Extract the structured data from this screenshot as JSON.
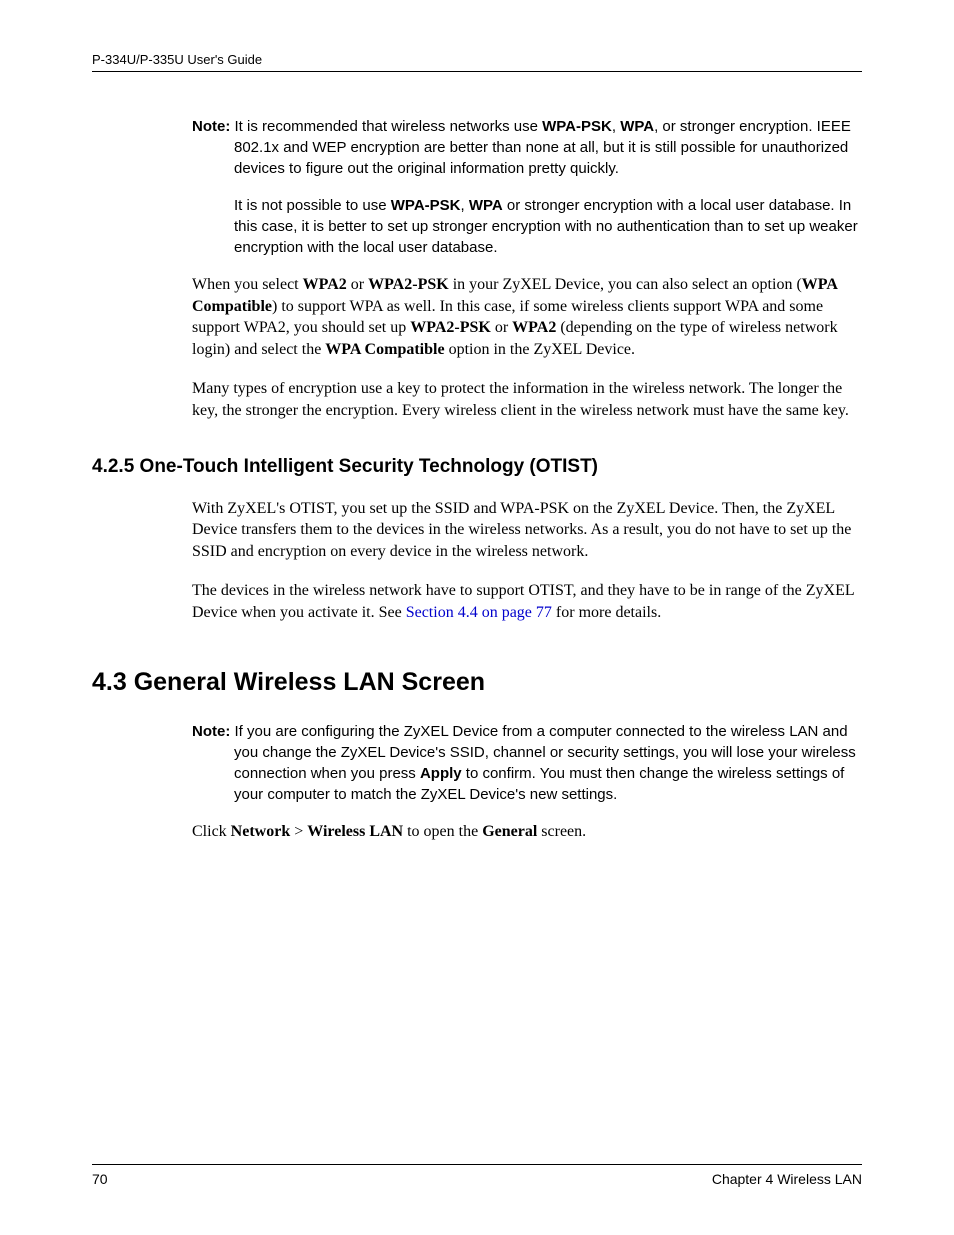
{
  "header": {
    "title": "P-334U/P-335U User's Guide"
  },
  "footer": {
    "page_number": "70",
    "chapter": "Chapter 4 Wireless LAN"
  },
  "note1": {
    "label": "Note:",
    "p1_a": " It is recommended that wireless networks use ",
    "p1_b": "WPA-PSK",
    "p1_c": ", ",
    "p1_d": "WPA",
    "p1_e": ", or stronger encryption. IEEE 802.1x and WEP encryption are better than none at all, but it is still possible for unauthorized devices to figure out the original information pretty quickly.",
    "p2_a": "It is not possible to use ",
    "p2_b": "WPA-PSK",
    "p2_c": ", ",
    "p2_d": "WPA",
    "p2_e": " or stronger encryption with a local user database. In this case, it is better to set up stronger encryption with no authentication than to set up weaker encryption with the local user database."
  },
  "body": {
    "p1_a": "When you select ",
    "p1_b": "WPA2",
    "p1_c": " or ",
    "p1_d": "WPA2-PSK",
    "p1_e": " in your ZyXEL Device, you can also select an option (",
    "p1_f": "WPA Compatible",
    "p1_g": ") to support WPA as well. In this case, if some wireless clients support WPA and some support WPA2, you should set up ",
    "p1_h": "WPA2-PSK",
    "p1_i": " or ",
    "p1_j": "WPA2",
    "p1_k": " (depending on the type of wireless network login) and select the ",
    "p1_l": "WPA Compatible",
    "p1_m": " option in the ZyXEL Device.",
    "p2": "Many types of encryption use a key to protect the information in the wireless network. The longer the key, the stronger the encryption. Every wireless client in the wireless network must have the same key."
  },
  "section425": {
    "heading": "4.2.5  One-Touch Intelligent Security Technology (OTIST)",
    "p1": "With ZyXEL's OTIST, you set up the SSID and WPA-PSK on the ZyXEL Device. Then, the ZyXEL Device transfers them to the devices in the wireless networks. As a result, you do not have to set up the SSID and encryption on every device in the wireless network.",
    "p2_a": "The devices in the wireless network have to support OTIST, and they have to be in range of the ZyXEL Device when you activate it. See ",
    "p2_link": "Section 4.4 on page 77",
    "p2_b": " for more details."
  },
  "section43": {
    "heading": "4.3  General Wireless LAN Screen",
    "note_label": "Note:",
    "note_a": " If you are configuring the ZyXEL Device from a computer connected to the wireless LAN and you change the ZyXEL Device's SSID, channel or security settings, you will lose your wireless connection when you press ",
    "note_b": "Apply",
    "note_c": " to confirm. You must then change the wireless settings of your computer to match the ZyXEL Device's new settings.",
    "p1_a": "Click ",
    "p1_b": "Network",
    "p1_c": " > ",
    "p1_d": "Wireless LAN",
    "p1_e": " to open the ",
    "p1_f": "General",
    "p1_g": " screen."
  }
}
